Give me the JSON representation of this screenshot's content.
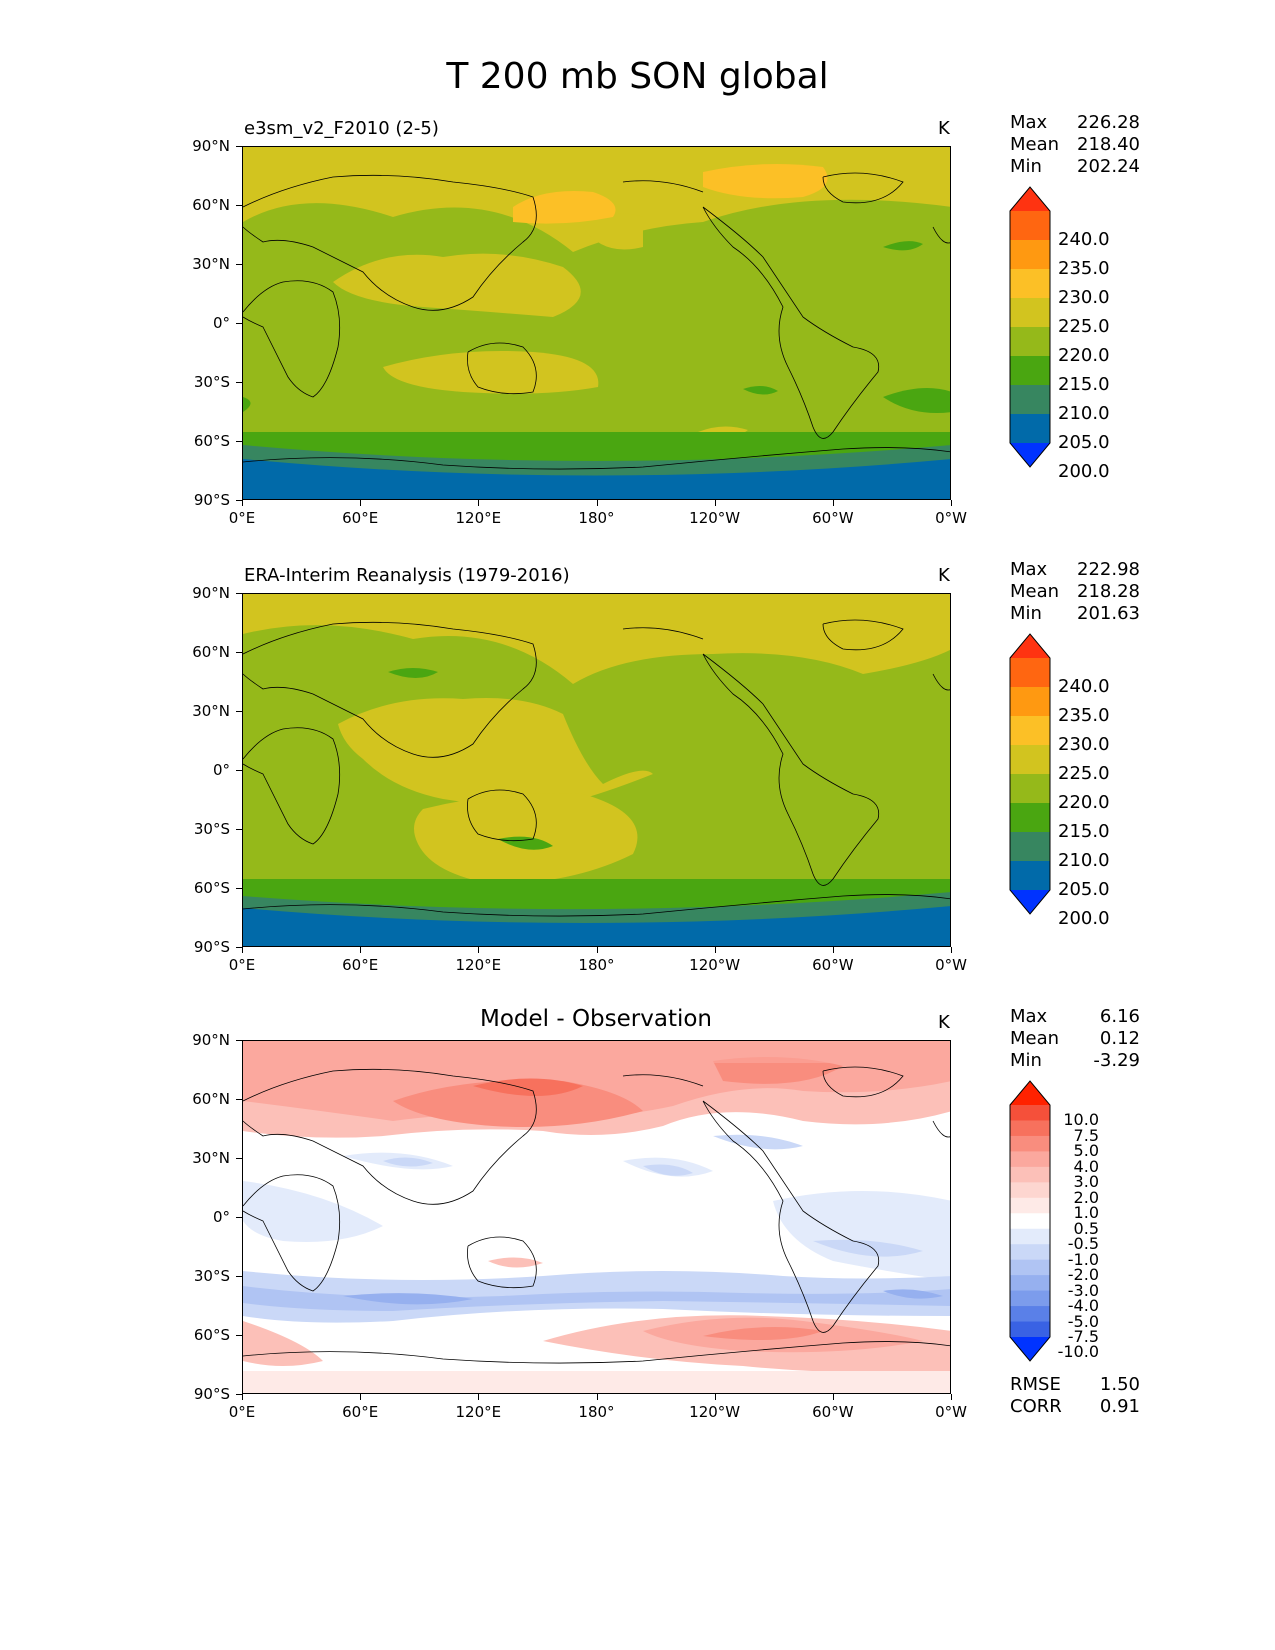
{
  "main_title": "T 200 mb SON global",
  "x_ticks": [
    "0°E",
    "60°E",
    "120°E",
    "180°",
    "120°W",
    "60°W",
    "0°W"
  ],
  "y_ticks": [
    "90°N",
    "60°N",
    "30°N",
    "0°",
    "30°S",
    "60°S",
    "90°S"
  ],
  "panels": [
    {
      "title": "e3sm_v2_F2010 (2-5)",
      "units": "K",
      "stats": {
        "max_label": "Max",
        "max": "226.28",
        "mean_label": "Mean",
        "mean": "218.40",
        "min_label": "Min",
        "min": "202.24"
      },
      "colorbar": {
        "labels": [
          "240.0",
          "235.0",
          "230.0",
          "225.0",
          "220.0",
          "215.0",
          "210.0",
          "205.0",
          "200.0"
        ],
        "colors": [
          "#ff3311",
          "#ff6611",
          "#ff9911",
          "#fcc026",
          "#d2c41f",
          "#95b91a",
          "#4aa611",
          "#378660",
          "#016aa9",
          "#0033ff"
        ]
      }
    },
    {
      "title": "ERA-Interim Reanalysis (1979-2016)",
      "units": "K",
      "stats": {
        "max_label": "Max",
        "max": "222.98",
        "mean_label": "Mean",
        "mean": "218.28",
        "min_label": "Min",
        "min": "201.63"
      },
      "colorbar": {
        "labels": [
          "240.0",
          "235.0",
          "230.0",
          "225.0",
          "220.0",
          "215.0",
          "210.0",
          "205.0",
          "200.0"
        ],
        "colors": [
          "#ff3311",
          "#ff6611",
          "#ff9911",
          "#fcc026",
          "#d2c41f",
          "#95b91a",
          "#4aa611",
          "#378660",
          "#016aa9",
          "#0033ff"
        ]
      }
    },
    {
      "title": "Model - Observation",
      "units": "K",
      "stats": {
        "max_label": "Max",
        "max": "6.16",
        "mean_label": "Mean",
        "mean": "0.12",
        "min_label": "Min",
        "min": "-3.29"
      },
      "colorbar": {
        "labels": [
          "10.0",
          "7.5",
          "5.0",
          "4.0",
          "3.0",
          "2.0",
          "1.0",
          "0.5",
          "-0.5",
          "-1.0",
          "-2.0",
          "-3.0",
          "-4.0",
          "-5.0",
          "-7.5",
          "-10.0"
        ],
        "colors": [
          "#ff2200",
          "#f5503a",
          "#f7715d",
          "#f98d7e",
          "#fba89e",
          "#fcc0b8",
          "#fdd6d0",
          "#feeae7",
          "#ffffff",
          "#e3ebfb",
          "#cad8f7",
          "#b0c4f3",
          "#96b0ef",
          "#7c9cec",
          "#5a80e8",
          "#3962e4",
          "#0033ff"
        ]
      },
      "rmse_label": "RMSE",
      "rmse": "1.50",
      "corr_label": "CORR",
      "corr": "0.91"
    }
  ],
  "chart_data": [
    {
      "type": "heatmap",
      "title": "e3sm_v2_F2010 (2-5)",
      "units": "K",
      "x_range_deg_east": [
        0,
        360
      ],
      "y_range_deg_lat": [
        -90,
        90
      ],
      "levels": [
        200,
        205,
        210,
        215,
        220,
        225,
        230,
        235,
        240
      ],
      "zonal_mean_profile": [
        {
          "lat": 80,
          "value": 221
        },
        {
          "lat": 60,
          "value": 219
        },
        {
          "lat": 30,
          "value": 218
        },
        {
          "lat": 0,
          "value": 217
        },
        {
          "lat": -30,
          "value": 218
        },
        {
          "lat": -60,
          "value": 211
        },
        {
          "lat": -80,
          "value": 204
        }
      ],
      "max": 226.28,
      "mean": 218.4,
      "min": 202.24
    },
    {
      "type": "heatmap",
      "title": "ERA-Interim Reanalysis (1979-2016)",
      "units": "K",
      "x_range_deg_east": [
        0,
        360
      ],
      "y_range_deg_lat": [
        -90,
        90
      ],
      "levels": [
        200,
        205,
        210,
        215,
        220,
        225,
        230,
        235,
        240
      ],
      "zonal_mean_profile": [
        {
          "lat": 80,
          "value": 220
        },
        {
          "lat": 60,
          "value": 217
        },
        {
          "lat": 30,
          "value": 218
        },
        {
          "lat": 0,
          "value": 217
        },
        {
          "lat": -30,
          "value": 219
        },
        {
          "lat": -60,
          "value": 212
        },
        {
          "lat": -80,
          "value": 204
        }
      ],
      "max": 222.98,
      "mean": 218.28,
      "min": 201.63
    },
    {
      "type": "heatmap",
      "title": "Model - Observation",
      "units": "K",
      "x_range_deg_east": [
        0,
        360
      ],
      "y_range_deg_lat": [
        -90,
        90
      ],
      "levels": [
        -10,
        -7.5,
        -5,
        -4,
        -3,
        -2,
        -1,
        -0.5,
        0.5,
        1,
        2,
        3,
        4,
        5,
        7.5,
        10
      ],
      "max": 6.16,
      "mean": 0.12,
      "min": -3.29,
      "rmse": 1.5,
      "corr": 0.91
    }
  ]
}
